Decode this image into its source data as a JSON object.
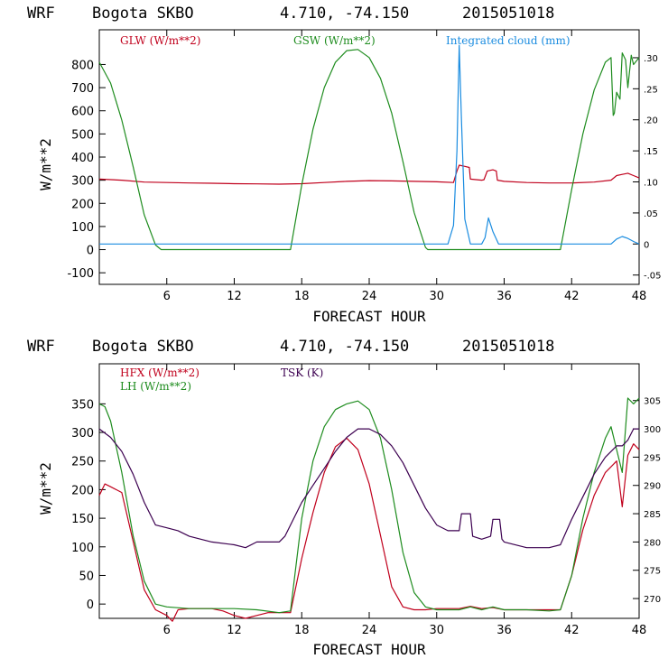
{
  "colors": {
    "red": "#c0001c",
    "green": "#1e8c1e",
    "blue": "#1a8ce0",
    "purple": "#3c0050",
    "axis": "#000000"
  },
  "panels": {
    "top": {
      "title_model": "WRF",
      "title_station": "Bogota SKBO",
      "title_coords": "4.710, -74.150",
      "title_date": "2015051018",
      "ylabel": "W/m**2",
      "xlabel": "FORECAST HOUR",
      "legend_glw": "GLW (W/m**2)",
      "legend_gsw": "GSW (W/m**2)",
      "legend_cloud": "Integrated cloud (mm)"
    },
    "bottom": {
      "title_model": "WRF",
      "title_station": "Bogota SKBO",
      "title_coords": "4.710, -74.150",
      "title_date": "2015051018",
      "ylabel": "W/m**2",
      "xlabel": "FORECAST HOUR",
      "legend_hfx": "HFX (W/m**2)",
      "legend_lh": "LH  (W/m**2)",
      "legend_tsk": "TSK (K)"
    }
  },
  "chart_data": [
    {
      "type": "line",
      "title": "WRF Bogota SKBO 4.710, -74.150 2015051018",
      "xlabel": "FORECAST HOUR",
      "ylabel": "W/m**2",
      "xlim": [
        0,
        48
      ],
      "ylim": [
        -150,
        950
      ],
      "y2lim": [
        -0.065,
        0.345
      ],
      "xticks": [
        6,
        12,
        18,
        24,
        30,
        36,
        42,
        48
      ],
      "yticks": [
        -100,
        0,
        100,
        200,
        300,
        400,
        500,
        600,
        700,
        800
      ],
      "y2ticks": [
        -0.05,
        0,
        0.05,
        0.1,
        0.15,
        0.2,
        0.25,
        0.3
      ],
      "y2ticklabels": [
        "-.05",
        "0",
        ".05",
        ".10",
        ".15",
        ".20",
        ".25",
        ".30"
      ],
      "series": [
        {
          "name": "GLW (W/m**2)",
          "color": "red",
          "axis": "left",
          "x": [
            0,
            2,
            4,
            6,
            8,
            10,
            12,
            14,
            16,
            18,
            20,
            22,
            24,
            26,
            28,
            30,
            31.5,
            31.8,
            32.0,
            32.5,
            32.9,
            33.0,
            34.0,
            34.2,
            34.5,
            35.0,
            35.3,
            35.4,
            36,
            38,
            40,
            42,
            44,
            45.5,
            46,
            46.5,
            47,
            47.5,
            48
          ],
          "y": [
            305,
            300,
            292,
            290,
            288,
            287,
            285,
            284,
            283,
            285,
            290,
            295,
            298,
            297,
            295,
            293,
            290,
            340,
            365,
            360,
            355,
            305,
            300,
            302,
            340,
            345,
            340,
            300,
            295,
            290,
            288,
            288,
            292,
            300,
            320,
            325,
            330,
            320,
            310
          ]
        },
        {
          "name": "GSW (W/m**2)",
          "color": "green",
          "axis": "left",
          "x": [
            0,
            1,
            2,
            3,
            4,
            5,
            5.5,
            17,
            18,
            19,
            20,
            21,
            22,
            23,
            24,
            25,
            26,
            27,
            28,
            29,
            29.2,
            41,
            42,
            43,
            44,
            45,
            45.5,
            45.7,
            45.8,
            46.0,
            46.3,
            46.5,
            46.8,
            47.0,
            47.3,
            47.5,
            48
          ],
          "y": [
            810,
            720,
            560,
            360,
            150,
            20,
            0,
            0,
            280,
            520,
            700,
            810,
            860,
            865,
            830,
            740,
            590,
            380,
            160,
            10,
            0,
            0,
            260,
            500,
            690,
            810,
            830,
            580,
            590,
            680,
            650,
            850,
            820,
            700,
            840,
            800,
            830
          ]
        },
        {
          "name": "Integrated cloud (mm)",
          "color": "blue",
          "axis": "right",
          "x": [
            0,
            31.0,
            31.5,
            31.8,
            32.0,
            32.2,
            32.5,
            33.0,
            34.0,
            34.3,
            34.6,
            35.0,
            35.5,
            36,
            45.5,
            46.0,
            46.5,
            47.0,
            47.5,
            48
          ],
          "y": [
            0,
            0,
            0.03,
            0.15,
            0.32,
            0.2,
            0.04,
            0,
            0,
            0.01,
            0.042,
            0.02,
            0,
            0,
            0,
            0.008,
            0.012,
            0.009,
            0.004,
            0
          ]
        }
      ]
    },
    {
      "type": "line",
      "title": "WRF Bogota SKBO 4.710, -74.150 2015051018",
      "xlabel": "FORECAST HOUR",
      "ylabel": "W/m**2",
      "xlim": [
        0,
        48
      ],
      "ylim": [
        -25,
        420
      ],
      "y2lim": [
        266.5,
        311.5
      ],
      "xticks": [
        6,
        12,
        18,
        24,
        30,
        36,
        42,
        48
      ],
      "yticks": [
        0,
        50,
        100,
        150,
        200,
        250,
        300,
        350
      ],
      "y2ticks": [
        270,
        275,
        280,
        285,
        290,
        295,
        300,
        305
      ],
      "series": [
        {
          "name": "HFX (W/m**2)",
          "color": "red",
          "axis": "left",
          "x": [
            0,
            0.5,
            1,
            1.5,
            2,
            3,
            4,
            5,
            6,
            6.5,
            7,
            8,
            10,
            11,
            12,
            13,
            14,
            15,
            16,
            17,
            18,
            19,
            20,
            21,
            22,
            23,
            24,
            25,
            26,
            27,
            28,
            29,
            30,
            32,
            33,
            34,
            35,
            36,
            38,
            40,
            41,
            42,
            43,
            44,
            45,
            45.5,
            46,
            46.5,
            47,
            47.5,
            48
          ],
          "y": [
            190,
            210,
            205,
            200,
            195,
            110,
            25,
            -10,
            -20,
            -30,
            -10,
            -8,
            -8,
            -12,
            -20,
            -25,
            -20,
            -15,
            -15,
            -15,
            80,
            160,
            230,
            275,
            290,
            270,
            210,
            120,
            30,
            -5,
            -10,
            -10,
            -8,
            -8,
            -4,
            -8,
            -6,
            -10,
            -10,
            -10,
            -10,
            50,
            130,
            190,
            230,
            240,
            250,
            170,
            260,
            280,
            270
          ]
        },
        {
          "name": "LH  (W/m**2)",
          "color": "green",
          "axis": "left",
          "x": [
            0,
            0.5,
            1,
            2,
            3,
            4,
            5,
            6,
            8,
            10,
            12,
            14,
            16,
            17,
            18,
            19,
            20,
            21,
            22,
            23,
            24,
            25,
            26,
            27,
            28,
            29,
            30,
            32,
            33,
            34,
            35,
            36,
            38,
            40,
            41,
            42,
            43,
            44,
            45,
            45.5,
            46,
            46.5,
            47,
            47.5,
            48
          ],
          "y": [
            350,
            345,
            320,
            230,
            120,
            40,
            0,
            -5,
            -8,
            -8,
            -8,
            -10,
            -15,
            -12,
            150,
            250,
            310,
            340,
            350,
            355,
            340,
            290,
            200,
            90,
            20,
            -5,
            -10,
            -10,
            -5,
            -10,
            -5,
            -10,
            -10,
            -12,
            -10,
            50,
            150,
            230,
            290,
            310,
            270,
            230,
            360,
            350,
            360
          ]
        },
        {
          "name": "TSK (K)",
          "color": "purple",
          "axis": "right",
          "x": [
            0,
            1,
            2,
            3,
            4,
            5,
            6,
            7,
            8,
            10,
            12,
            13,
            14,
            15,
            16,
            16.5,
            17,
            18,
            19,
            20,
            21,
            22,
            23,
            24,
            25,
            26,
            27,
            28,
            29,
            30,
            31,
            32,
            32.2,
            33.0,
            33.2,
            34,
            34.8,
            35.0,
            35.6,
            35.8,
            36,
            38,
            40,
            41,
            42,
            43,
            44,
            45,
            46,
            46.5,
            47,
            47.5,
            48
          ],
          "y": [
            300,
            298.5,
            296,
            292,
            287,
            283,
            282.5,
            282,
            281,
            280,
            279.5,
            279,
            280,
            280,
            280,
            281,
            283,
            287,
            290,
            293,
            296,
            298.5,
            300,
            300,
            299,
            297,
            294,
            290,
            286,
            283,
            282,
            282,
            285,
            285,
            281,
            280.5,
            281,
            284,
            284,
            280.5,
            280,
            279,
            279,
            279.5,
            284,
            288,
            292,
            295,
            297,
            297,
            298,
            300,
            300
          ]
        }
      ]
    }
  ]
}
